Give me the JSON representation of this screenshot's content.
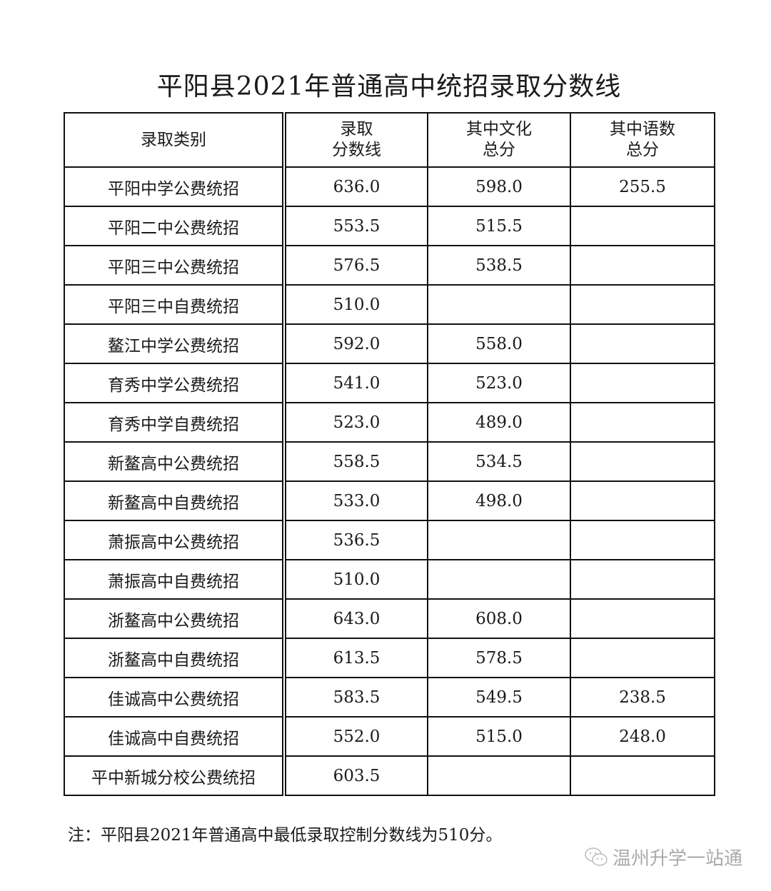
{
  "title": "平阳县2021年普通高中统招录取分数线",
  "table": {
    "headers": [
      [
        "录取类别"
      ],
      [
        "录取",
        "分数线"
      ],
      [
        "其中文化",
        "总分"
      ],
      [
        "其中语数",
        "总分"
      ]
    ],
    "rows": [
      [
        "平阳中学公费统招",
        "636.0",
        "598.0",
        "255.5"
      ],
      [
        "平阳二中公费统招",
        "553.5",
        "515.5",
        ""
      ],
      [
        "平阳三中公费统招",
        "576.5",
        "538.5",
        ""
      ],
      [
        "平阳三中自费统招",
        "510.0",
        "",
        ""
      ],
      [
        "鳌江中学公费统招",
        "592.0",
        "558.0",
        ""
      ],
      [
        "育秀中学公费统招",
        "541.0",
        "523.0",
        ""
      ],
      [
        "育秀中学自费统招",
        "523.0",
        "489.0",
        ""
      ],
      [
        "新鳌高中公费统招",
        "558.5",
        "534.5",
        ""
      ],
      [
        "新鳌高中自费统招",
        "533.0",
        "498.0",
        ""
      ],
      [
        "萧振高中公费统招",
        "536.5",
        "",
        ""
      ],
      [
        "萧振高中自费统招",
        "510.0",
        "",
        ""
      ],
      [
        "浙鳌高中公费统招",
        "643.0",
        "608.0",
        ""
      ],
      [
        "浙鳌高中自费统招",
        "613.5",
        "578.5",
        ""
      ],
      [
        "佳诚高中公费统招",
        "583.5",
        "549.5",
        "238.5"
      ],
      [
        "佳诚高中自费统招",
        "552.0",
        "515.0",
        "248.0"
      ],
      [
        "平中新城分校公费统招",
        "603.5",
        "",
        ""
      ]
    ]
  },
  "note": "注：平阳县2021年普通高中最低录取控制分数线为510分。",
  "watermark": {
    "icon": "wechat-icon",
    "text": "温州升学一站通"
  }
}
